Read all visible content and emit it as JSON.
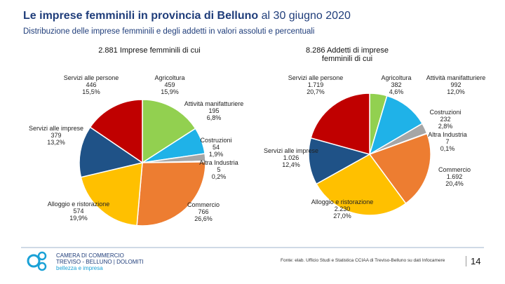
{
  "header": {
    "title": "Le imprese femminili in provincia di Belluno",
    "title_date": "al 30 giugno 2020",
    "subtitle": "Distribuzione delle imprese femminili  e degli addetti in valori assoluti e percentuali"
  },
  "chart_data": [
    {
      "type": "pie",
      "title": "2.881 Imprese femminili di cui",
      "categories": [
        "Agricoltura",
        "Attività manifatturiere",
        "Costruzioni",
        "Altra Industria",
        "Commercio",
        "Alloggio e ristorazione",
        "Servizi alle imprese",
        "Servizi alle persone"
      ],
      "values": [
        15.9,
        6.8,
        1.9,
        0.2,
        26.6,
        19.9,
        13.2,
        15.5
      ],
      "value_labels": [
        "15,9%",
        "6,8%",
        "1,9%",
        "0,2%",
        "26,6%",
        "19,9%",
        "13,2%",
        "15,5%"
      ],
      "counts": [
        459,
        195,
        54,
        5,
        766,
        574,
        379,
        446
      ],
      "colors": [
        "#92d050",
        "#1fb2e8",
        "#a6a6a6",
        "#4472c4",
        "#ed7d31",
        "#ffc000",
        "#1f5287",
        "#c00000"
      ]
    },
    {
      "type": "pie",
      "title": "8.286 Addetti di imprese femminili di cui",
      "categories": [
        "Agricoltura",
        "Attività manifatturiere",
        "Costruzioni",
        "Altra Industria",
        "Commercio",
        "Alloggio e ristorazione",
        "Servizi alle imprese",
        "Servizi alle persone"
      ],
      "values": [
        4.6,
        12.0,
        2.8,
        0.1,
        20.4,
        27.0,
        12.4,
        20.7
      ],
      "value_labels": [
        "4,6%",
        "12,0%",
        "2,8%",
        "0,1%",
        "20,4%",
        "27,0%",
        "12,4%",
        "20,7%"
      ],
      "counts": [
        382,
        992,
        232,
        7,
        1692,
        2230,
        1026,
        1719
      ],
      "count_labels": [
        "382",
        "992",
        "232",
        "7",
        "1.692",
        "2.230",
        "1.026",
        "1.719"
      ],
      "colors": [
        "#92d050",
        "#1fb2e8",
        "#a6a6a6",
        "#4472c4",
        "#ed7d31",
        "#ffc000",
        "#1f5287",
        "#c00000"
      ]
    }
  ],
  "footer": {
    "logo_lines": [
      "CAMERA DI COMMERCIO",
      "TREVISO - BELLUNO | DOLOMITI",
      "bellezza e impresa"
    ],
    "source": "Fonte: elab. Ufficio Studi e Statistica CCIAA di Treviso-Belluno su dati Infocamere",
    "page": "14"
  }
}
